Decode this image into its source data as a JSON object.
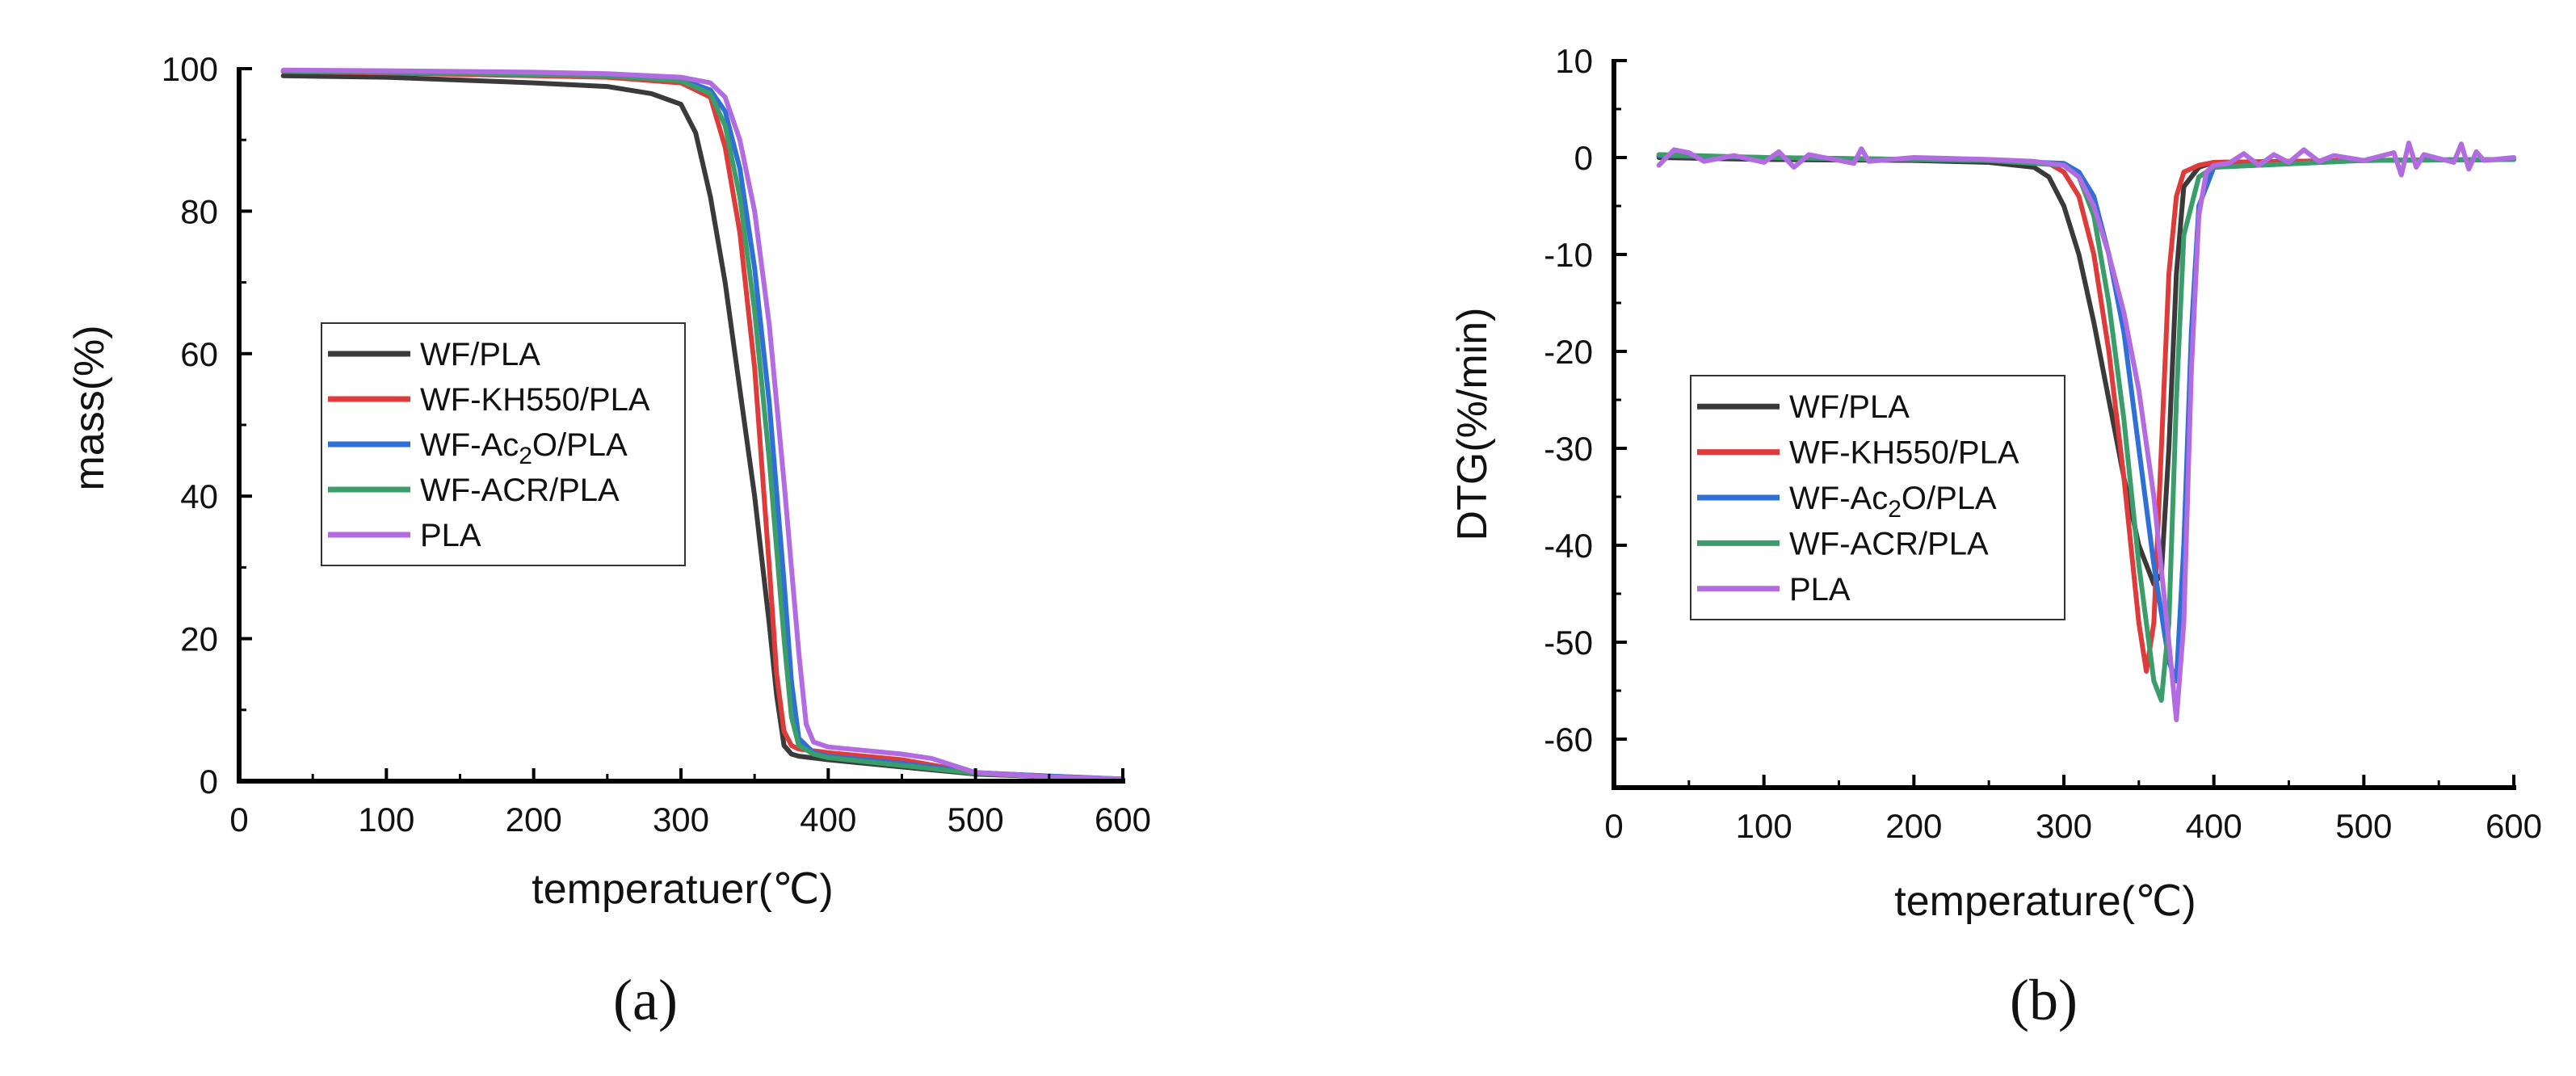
{
  "figure": {
    "panel_a_label": "(a)",
    "panel_b_label": "(b)",
    "panel_a_letter": "a",
    "panel_b_letter": "b"
  },
  "chart_data": [
    {
      "id": "a",
      "type": "line",
      "title": "",
      "xlabel": "temperatuer(℃)",
      "ylabel": "mass(%)",
      "xlim": [
        0,
        600
      ],
      "ylim": [
        0,
        100
      ],
      "xticks": [
        0,
        100,
        200,
        300,
        400,
        500,
        600
      ],
      "yticks": [
        0,
        20,
        40,
        60,
        80,
        100
      ],
      "grid": false,
      "legend_position": "center-left",
      "series": [
        {
          "name": "WF/PLA",
          "label_main": "WF/PLA",
          "color": "#3a3a3a",
          "x": [
            30,
            100,
            200,
            250,
            280,
            300,
            310,
            320,
            330,
            340,
            350,
            360,
            365,
            370,
            375,
            380,
            400,
            450,
            500,
            550,
            600
          ],
          "y": [
            99,
            98.8,
            98,
            97.5,
            96.5,
            95,
            91,
            82,
            70,
            55,
            40,
            22,
            12,
            5,
            3.8,
            3.5,
            3,
            2,
            1,
            0.6,
            0.3
          ]
        },
        {
          "name": "WF-KH550/PLA",
          "label_main": "WF-KH550/PLA",
          "color": "#e03b3b",
          "x": [
            30,
            100,
            200,
            250,
            300,
            320,
            330,
            340,
            350,
            360,
            365,
            370,
            375,
            380,
            400,
            450,
            500,
            550,
            600
          ],
          "y": [
            99.6,
            99.4,
            99,
            98.8,
            98,
            96,
            89,
            77,
            58,
            30,
            15,
            7,
            5,
            4.5,
            4,
            3,
            1.2,
            0.7,
            0.3
          ]
        },
        {
          "name": "WF-Ac2O/PLA",
          "label_main": "WF-Ac",
          "label_sub": "2",
          "label_tail": "O/PLA",
          "color": "#2e6fd8",
          "x": [
            30,
            100,
            200,
            250,
            300,
            320,
            330,
            340,
            350,
            360,
            370,
            375,
            380,
            390,
            400,
            450,
            500,
            550,
            600
          ],
          "y": [
            99.7,
            99.5,
            99.2,
            99,
            98.5,
            97,
            94,
            86,
            72,
            53,
            28,
            14,
            6,
            4,
            3.5,
            2.5,
            1.2,
            0.7,
            0.3
          ]
        },
        {
          "name": "WF-ACR/PLA",
          "label_main": "WF-ACR/PLA",
          "color": "#3a9d6a",
          "x": [
            30,
            100,
            200,
            250,
            300,
            320,
            330,
            340,
            350,
            360,
            370,
            375,
            380,
            390,
            400,
            450,
            500,
            550,
            600
          ],
          "y": [
            99.7,
            99.5,
            99.2,
            99,
            98.3,
            96.5,
            92,
            82,
            66,
            45,
            20,
            9,
            5,
            3.8,
            3.3,
            2.2,
            1.1,
            0.6,
            0.3
          ]
        },
        {
          "name": "PLA",
          "label_main": "PLA",
          "color": "#b26be0",
          "x": [
            30,
            100,
            200,
            250,
            300,
            320,
            330,
            340,
            350,
            360,
            370,
            380,
            385,
            390,
            400,
            450,
            470,
            500,
            550,
            600
          ],
          "y": [
            99.8,
            99.7,
            99.5,
            99.3,
            98.8,
            98,
            96,
            90,
            80,
            64,
            42,
            18,
            8,
            5.5,
            4.8,
            3.8,
            3.2,
            1.2,
            0.6,
            0.3
          ]
        }
      ]
    },
    {
      "id": "b",
      "type": "line",
      "title": "",
      "xlabel": "temperature(℃)",
      "ylabel": "DTG(%/min)",
      "xlim": [
        0,
        600
      ],
      "ylim": [
        -65,
        10
      ],
      "xticks": [
        0,
        100,
        200,
        300,
        400,
        500,
        600
      ],
      "yticks": [
        10,
        0,
        -10,
        -20,
        -30,
        -40,
        -50,
        -60
      ],
      "grid": false,
      "legend_position": "center-left",
      "series": [
        {
          "name": "WF/PLA",
          "label_main": "WF/PLA",
          "color": "#3a3a3a",
          "x": [
            30,
            100,
            200,
            250,
            280,
            290,
            300,
            310,
            320,
            330,
            340,
            350,
            360,
            365,
            370,
            375,
            380,
            390,
            400,
            500,
            600
          ],
          "y": [
            0,
            -0.2,
            -0.3,
            -0.5,
            -1,
            -2,
            -5,
            -10,
            -17,
            -25,
            -33,
            -40,
            -44,
            -43,
            -30,
            -12,
            -3,
            -1,
            -0.5,
            -0.3,
            -0.2
          ]
        },
        {
          "name": "WF-KH550/PLA",
          "label_main": "WF-KH550/PLA",
          "color": "#e03b3b",
          "x": [
            30,
            100,
            200,
            250,
            290,
            300,
            310,
            320,
            330,
            340,
            350,
            355,
            360,
            365,
            370,
            375,
            380,
            390,
            400,
            500,
            600
          ],
          "y": [
            0.2,
            0,
            -0.2,
            -0.3,
            -0.6,
            -1.5,
            -4,
            -10,
            -20,
            -33,
            -48,
            -53,
            -48,
            -30,
            -12,
            -4,
            -1.5,
            -0.8,
            -0.5,
            -0.3,
            -0.2
          ]
        },
        {
          "name": "WF-Ac2O/PLA",
          "label_main": "WF-Ac",
          "label_sub": "2",
          "label_tail": "O/PLA",
          "color": "#2e6fd8",
          "x": [
            30,
            100,
            200,
            250,
            300,
            310,
            320,
            330,
            340,
            350,
            360,
            370,
            375,
            380,
            385,
            390,
            400,
            500,
            600
          ],
          "y": [
            0.2,
            0,
            -0.2,
            -0.3,
            -0.6,
            -1.5,
            -4,
            -10,
            -18,
            -30,
            -42,
            -52,
            -54,
            -40,
            -18,
            -5,
            -1,
            -0.3,
            -0.2
          ]
        },
        {
          "name": "WF-ACR/PLA",
          "label_main": "WF-ACR/PLA",
          "color": "#3a9d6a",
          "x": [
            30,
            100,
            200,
            250,
            300,
            310,
            320,
            330,
            340,
            350,
            360,
            365,
            370,
            375,
            380,
            390,
            400,
            500,
            600
          ],
          "y": [
            0.3,
            0,
            -0.2,
            -0.3,
            -0.8,
            -2,
            -6,
            -15,
            -27,
            -42,
            -54,
            -56,
            -48,
            -25,
            -8,
            -2,
            -1,
            -0.3,
            -0.2
          ]
        },
        {
          "name": "PLA",
          "label_main": "PLA",
          "color": "#b26be0",
          "x": [
            30,
            40,
            50,
            60,
            80,
            100,
            110,
            120,
            130,
            160,
            165,
            170,
            200,
            250,
            280,
            300,
            310,
            320,
            330,
            340,
            350,
            360,
            370,
            375,
            380,
            385,
            390,
            395,
            400,
            410,
            420,
            430,
            440,
            450,
            460,
            470,
            480,
            500,
            520,
            525,
            530,
            535,
            540,
            560,
            565,
            570,
            575,
            580,
            600
          ],
          "y": [
            -0.8,
            0.8,
            0.5,
            -0.4,
            0.2,
            -0.5,
            0.6,
            -1,
            0.3,
            -0.6,
            0.9,
            -0.4,
            0,
            -0.2,
            -0.4,
            -0.8,
            -2,
            -5,
            -10,
            -16,
            -24,
            -35,
            -50,
            -58,
            -48,
            -22,
            -6,
            -1.5,
            -0.8,
            -0.6,
            0.4,
            -0.8,
            0.3,
            -0.5,
            0.8,
            -0.4,
            0.2,
            -0.3,
            0.5,
            -1.8,
            1.5,
            -1,
            0.3,
            -0.5,
            1.4,
            -1.2,
            0.6,
            -0.3,
            0
          ]
        }
      ]
    }
  ]
}
